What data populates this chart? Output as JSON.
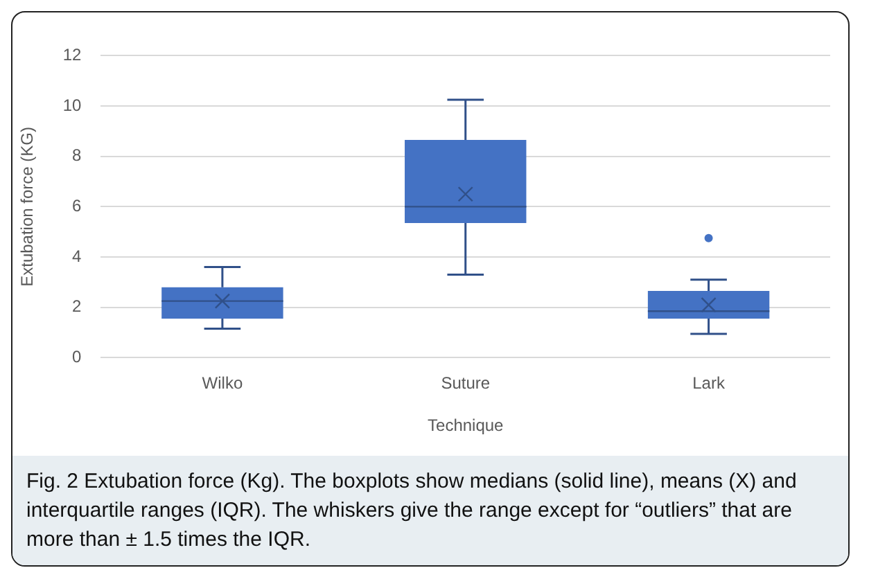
{
  "chart_data": {
    "type": "box",
    "xlabel": "Technique",
    "ylabel": "Extubation force (KG)",
    "categories": [
      "Wilko",
      "Suture",
      "Lark"
    ],
    "boxes": [
      {
        "low": 1.15,
        "q1": 1.55,
        "median": 2.25,
        "q3": 2.8,
        "high": 3.6,
        "mean": 2.25
      },
      {
        "low": 3.3,
        "q1": 5.35,
        "median": 6.0,
        "q3": 8.65,
        "high": 10.25,
        "mean": 6.5
      },
      {
        "low": 0.95,
        "q1": 1.55,
        "median": 1.85,
        "q3": 2.65,
        "high": 3.1,
        "mean": 2.1,
        "outliers": [
          4.75
        ]
      }
    ],
    "color": "#4472c4",
    "ylim": [
      0,
      12
    ],
    "yticks": [
      0,
      2,
      4,
      6,
      8,
      10,
      12
    ],
    "grid": "y",
    "legend": false,
    "annotations": [
      "Fig. 2 Extubation force (Kg). The boxplots show medians (solid line), means (X) and interquartile ranges (IQR). The whiskers give the range except for “outliers” that are more than ± 1.5 times the IQR."
    ]
  }
}
